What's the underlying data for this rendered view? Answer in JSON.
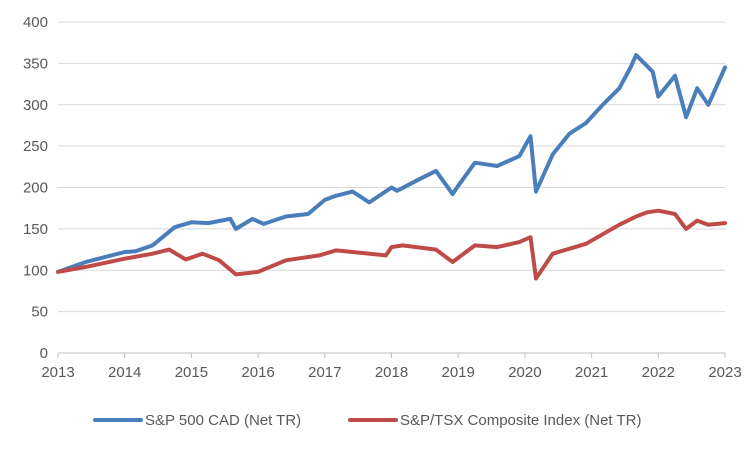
{
  "chart_data": {
    "type": "line",
    "title": "",
    "xlabel": "",
    "ylabel": "",
    "ylim": [
      0,
      400
    ],
    "xlim": [
      "2013",
      "2023"
    ],
    "yticks": [
      0,
      50,
      100,
      150,
      200,
      250,
      300,
      350,
      400
    ],
    "xticks": [
      "2013",
      "2014",
      "2015",
      "2016",
      "2017",
      "2018",
      "2019",
      "2020",
      "2021",
      "2022",
      "2023"
    ],
    "grid": "horizontal",
    "legend": "bottom",
    "series": [
      {
        "name": "S&P 500 CAD (Net TR)",
        "color": "#4a7ebb",
        "x": [
          "2013-01",
          "2013-06",
          "2014-01",
          "2014-03",
          "2014-06",
          "2014-10",
          "2015-01",
          "2015-04",
          "2015-08",
          "2015-09",
          "2015-12",
          "2016-02",
          "2016-06",
          "2016-10",
          "2017-01",
          "2017-03",
          "2017-06",
          "2017-09",
          "2018-01",
          "2018-02",
          "2018-06",
          "2018-09",
          "2018-12",
          "2019-01",
          "2019-04",
          "2019-08",
          "2019-12",
          "2020-02",
          "2020-03",
          "2020-06",
          "2020-09",
          "2020-12",
          "2021-03",
          "2021-06",
          "2021-08",
          "2021-09",
          "2021-12",
          "2022-01",
          "2022-04",
          "2022-06",
          "2022-08",
          "2022-10",
          "2023-01"
        ],
        "values": [
          98,
          110,
          122,
          123,
          130,
          152,
          158,
          157,
          162,
          150,
          162,
          156,
          165,
          168,
          185,
          190,
          195,
          182,
          200,
          196,
          210,
          220,
          192,
          202,
          230,
          226,
          238,
          262,
          195,
          240,
          265,
          278,
          300,
          320,
          345,
          360,
          340,
          310,
          335,
          285,
          320,
          300,
          345
        ]
      },
      {
        "name": "S&P/TSX Composite Index (Net TR)",
        "color": "#be4b48",
        "x": [
          "2013-01",
          "2013-06",
          "2014-01",
          "2014-06",
          "2014-09",
          "2014-12",
          "2015-03",
          "2015-06",
          "2015-09",
          "2016-01",
          "2016-06",
          "2016-12",
          "2017-03",
          "2017-06",
          "2017-12",
          "2018-01",
          "2018-03",
          "2018-09",
          "2018-12",
          "2019-04",
          "2019-08",
          "2019-12",
          "2020-02",
          "2020-03",
          "2020-06",
          "2020-12",
          "2021-06",
          "2021-09",
          "2021-11",
          "2022-01",
          "2022-04",
          "2022-06",
          "2022-08",
          "2022-10",
          "2023-01"
        ],
        "values": [
          98,
          104,
          114,
          120,
          125,
          113,
          120,
          112,
          95,
          98,
          112,
          118,
          124,
          122,
          118,
          128,
          130,
          125,
          110,
          130,
          128,
          134,
          140,
          90,
          120,
          132,
          155,
          165,
          170,
          172,
          168,
          150,
          160,
          155,
          157
        ]
      }
    ]
  }
}
